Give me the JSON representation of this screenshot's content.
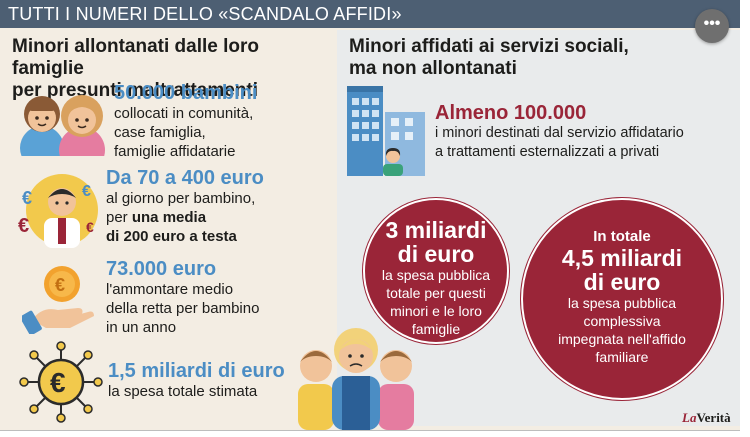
{
  "header": {
    "title": "TUTTI I NUMERI DELLO «SCANDALO AFFIDI»",
    "more_label": "•••"
  },
  "left": {
    "title_line1": "Minori allontanati dalle loro famiglie",
    "title_line2": "per presunti maltrattamenti",
    "items": [
      {
        "big": "50.000 bambini",
        "lines": [
          "collocati in comunità,",
          "case famiglia,",
          "famiglie affidatarie"
        ],
        "icon": "children-icon"
      },
      {
        "big": "Da 70 a 400 euro",
        "line1": "al giorno per bambino,",
        "line2_pre": "per ",
        "line2_bold": "una media",
        "line3_bold": "di 200 euro a testa",
        "icon": "euro-person-icon"
      },
      {
        "big": "73.000 euro",
        "lines": [
          "l'ammontare medio",
          "della retta per bambino",
          "in un anno"
        ],
        "icon": "coin-hand-icon"
      },
      {
        "big": "1,5 miliardi di euro",
        "lines": [
          "la spesa totale stimata"
        ],
        "icon": "euro-network-icon"
      }
    ]
  },
  "right": {
    "title_line1": "Minori affidati ai servizi sociali,",
    "title_line2": "ma non allontanati",
    "highlight": {
      "big": "Almeno 100.000",
      "lines": [
        "i minori destinati dal servizio affidatario",
        "a trattamenti esternalizzati a privati"
      ]
    },
    "circle1": {
      "big1": "3 miliardi",
      "big2": "di euro",
      "lines": [
        "la spesa pubblica",
        "totale per questi",
        "minori e le loro",
        "famiglie"
      ]
    },
    "circle2": {
      "top": "In totale",
      "big1": "4,5 miliardi",
      "big2": "di euro",
      "lines": [
        "la spesa pubblica",
        "complessiva",
        "impegnata nell'affido",
        "familiare"
      ]
    }
  },
  "logo": {
    "la": "La",
    "name": "Verità"
  },
  "colors": {
    "header": "#4d5f73",
    "stat_blue": "#4b8dc4",
    "stat_red": "#9a2538",
    "bg_left": "#f3ede3",
    "bg_right": "#e9ebec"
  }
}
